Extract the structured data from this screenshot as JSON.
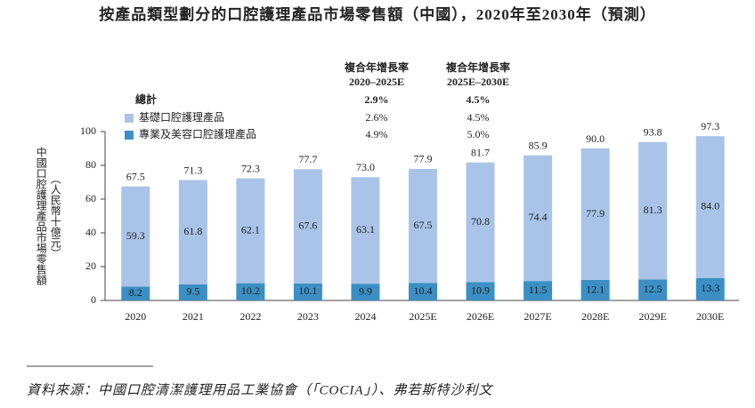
{
  "chart_data": {
    "type": "bar",
    "stacked": true,
    "title": "按產品類型劃分的口腔護理產品市場零售額（中國），2020年至2030年（預測）",
    "ylabel": "中國口腔護理產品市場零售額",
    "yunit": "（人民幣十億元）",
    "categories": [
      "2020",
      "2021",
      "2022",
      "2023",
      "2024",
      "2025E",
      "2026E",
      "2027E",
      "2028E",
      "2029E",
      "2030E"
    ],
    "series": [
      {
        "name": "基礎口腔護理產品",
        "color": "#a9c4e8",
        "values": [
          59.3,
          61.8,
          62.1,
          67.6,
          63.1,
          67.5,
          70.8,
          74.4,
          77.9,
          81.3,
          84.0
        ],
        "value_labels": [
          "59.3",
          "61.8",
          "62.1",
          "67.6",
          "63.1",
          "67.5",
          "70.8",
          "74.4",
          "77.9",
          "81.3",
          "84.0"
        ]
      },
      {
        "name": "專業及美容口腔護理產品",
        "color": "#3b8fc4",
        "values": [
          8.2,
          9.5,
          10.2,
          10.1,
          9.9,
          10.4,
          10.9,
          11.5,
          12.1,
          12.5,
          13.3
        ]
      }
    ],
    "total_name": "總計",
    "totals": [
      67.5,
      71.3,
      72.3,
      77.7,
      73.0,
      77.9,
      81.7,
      85.9,
      90.0,
      93.8,
      97.3
    ],
    "total_labels": [
      "67.5",
      "71.3",
      "72.3",
      "77.7",
      "73.0",
      "77.9",
      "81.7",
      "85.9",
      "90.0",
      "93.8",
      "97.3"
    ],
    "ylim": [
      0,
      100
    ],
    "yticks": [
      0,
      20,
      40,
      60,
      80,
      100
    ],
    "grid": false,
    "cagr_table": {
      "headers": [
        [
          "複合年增長率",
          "2020–2025E"
        ],
        [
          "複合年增長率",
          "2025E–2030E"
        ]
      ],
      "total": [
        "2.9%",
        "4.5%"
      ],
      "rows": [
        [
          "2.6%",
          "4.5%"
        ],
        [
          "4.9%",
          "5.0%"
        ]
      ]
    },
    "source": "資料來源：中國口腔清潔護理用品工業協會（「COCIA」）、弗若斯特沙利文"
  }
}
